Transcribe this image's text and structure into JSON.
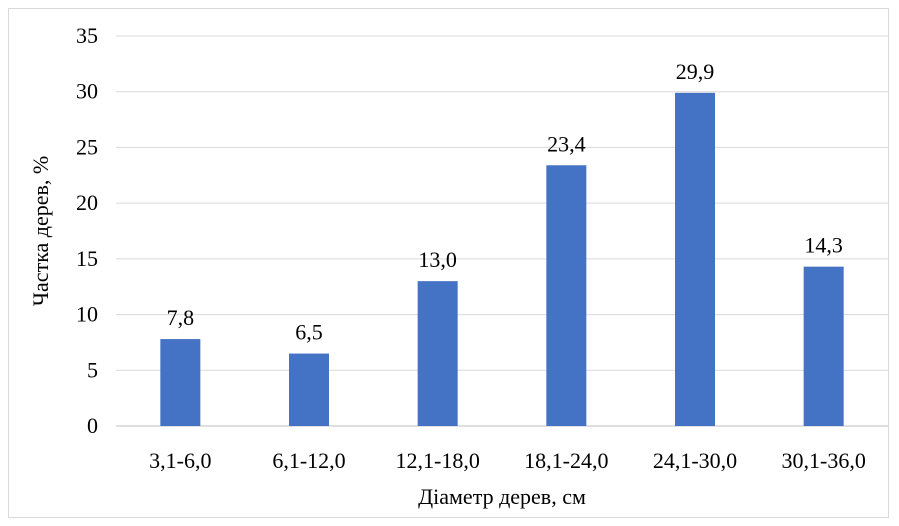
{
  "chart_data": {
    "type": "bar",
    "categories": [
      "3,1-6,0",
      "6,1-12,0",
      "12,1-18,0",
      "18,1-24,0",
      "24,1-30,0",
      "30,1-36,0"
    ],
    "values": [
      7.8,
      6.5,
      13.0,
      23.4,
      29.9,
      14.3
    ],
    "data_labels": [
      "7,8",
      "6,5",
      "13,0",
      "23,4",
      "29,9",
      "14,3"
    ],
    "y_ticks": [
      0,
      5,
      10,
      15,
      20,
      25,
      30,
      35
    ],
    "ylim": [
      0,
      35
    ],
    "xlabel": "Діаметр дерев, см",
    "ylabel": "Частка дерев, %",
    "bar_color": "#4472c4",
    "grid": true,
    "legend": "none"
  }
}
